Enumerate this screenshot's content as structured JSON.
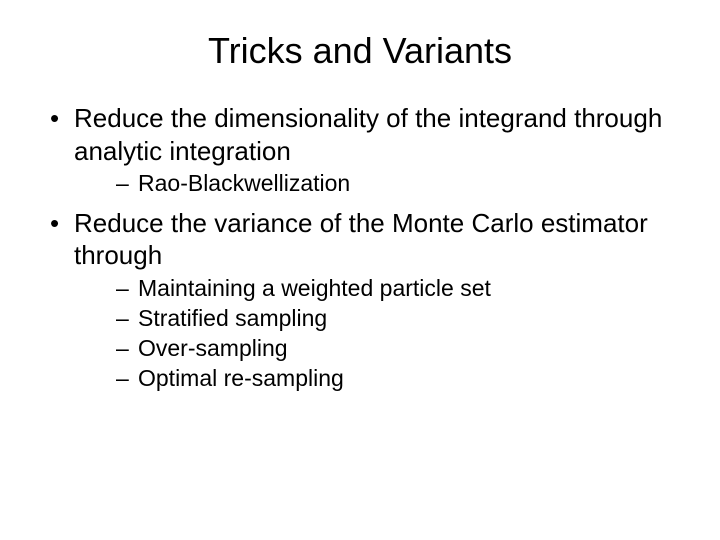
{
  "slide": {
    "title": "Tricks and Variants",
    "bullets": [
      {
        "text": "Reduce the dimensionality of the integrand through analytic integration",
        "sub": [
          "Rao-Blackwellization"
        ]
      },
      {
        "text": "Reduce the variance of the Monte Carlo estimator through",
        "sub": [
          "Maintaining a weighted particle set",
          "Stratified sampling",
          "Over-sampling",
          "Optimal re-sampling"
        ]
      }
    ]
  },
  "styling": {
    "background_color": "#ffffff",
    "text_color": "#000000",
    "title_fontsize": 36,
    "bullet_fontsize": 26,
    "sub_fontsize": 23,
    "font_family": "Arial"
  }
}
